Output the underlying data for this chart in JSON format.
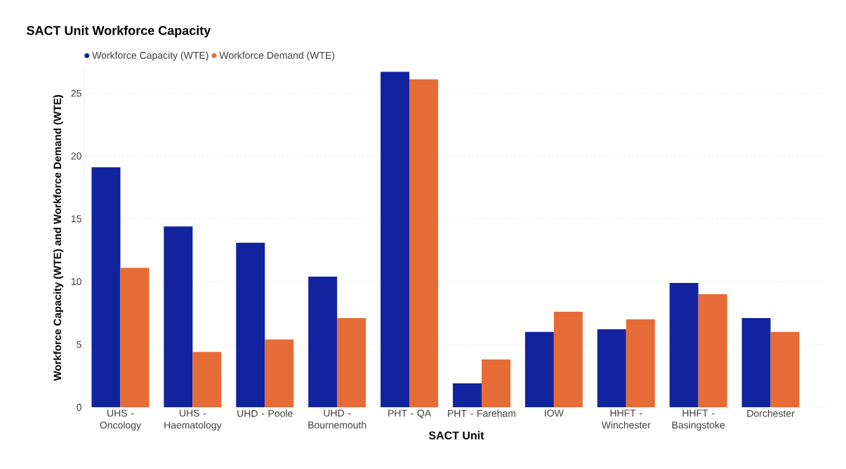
{
  "chart_data": {
    "type": "bar",
    "title": "SACT Unit Workforce Capacity",
    "xlabel": "SACT Unit",
    "ylabel": "Workforce Capacity (WTE) and Workforce Demand (WTE)",
    "categories": [
      "UHS - Oncology",
      "UHS - Haematology",
      "UHD - Poole",
      "UHD - Bournemouth",
      "PHT - QA",
      "PHT - Fareham",
      "IOW",
      "HHFT - Winchester",
      "HHFT - Basingstoke",
      "Dorchester"
    ],
    "series": [
      {
        "name": "Workforce Capacity (WTE)",
        "color": "#12239e",
        "values": [
          19.1,
          14.4,
          13.1,
          10.4,
          26.7,
          1.9,
          6.0,
          6.2,
          9.9,
          7.1
        ]
      },
      {
        "name": "Workforce Demand (WTE)",
        "color": "#e66c37",
        "values": [
          11.1,
          4.4,
          5.4,
          7.1,
          26.1,
          3.8,
          7.6,
          7.0,
          9.0,
          6.0
        ]
      }
    ],
    "ylim": [
      0,
      27
    ],
    "yticks": [
      0,
      5,
      10,
      15,
      20,
      25
    ],
    "grid": "y",
    "legend": "top left"
  }
}
